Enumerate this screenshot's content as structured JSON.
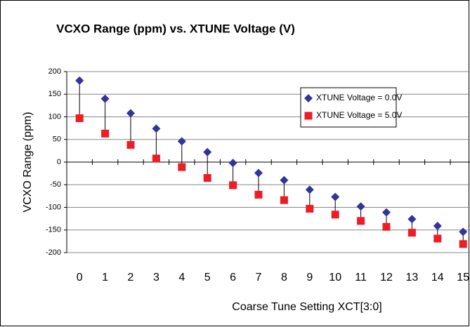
{
  "chart_data": {
    "type": "line",
    "title": "VCXO Range (ppm) vs. XTUNE Voltage (V)",
    "x_label": "Coarse Tune Setting XCT[3:0]",
    "y_label": "VCXO Range (ppm)",
    "categories": [
      "0",
      "1",
      "2",
      "3",
      "4",
      "5",
      "6",
      "7",
      "8",
      "9",
      "10",
      "11",
      "12",
      "13",
      "14",
      "15"
    ],
    "series": [
      {
        "name": "XTUNE Voltage = 0.0V",
        "color": "#333399",
        "marker": "diamond",
        "values": [
          180,
          140,
          108,
          74,
          46,
          22,
          -2,
          -24,
          -40,
          -61,
          -77,
          -98,
          -111,
          -126,
          -141,
          -154
        ]
      },
      {
        "name": "XTUNE Voltage = 5.0V",
        "color": "#ee1c25",
        "marker": "square",
        "values": [
          97,
          63,
          38,
          8,
          -11,
          -35,
          -51,
          -72,
          -84,
          -103,
          -116,
          -130,
          -143,
          -156,
          -169,
          -181
        ]
      }
    ],
    "drop_lines": true,
    "ylim": [
      -200,
      200
    ],
    "yticks": [
      -200,
      -150,
      -100,
      -50,
      0,
      50,
      100,
      150,
      200
    ],
    "grid": true,
    "legend": "upper right"
  }
}
